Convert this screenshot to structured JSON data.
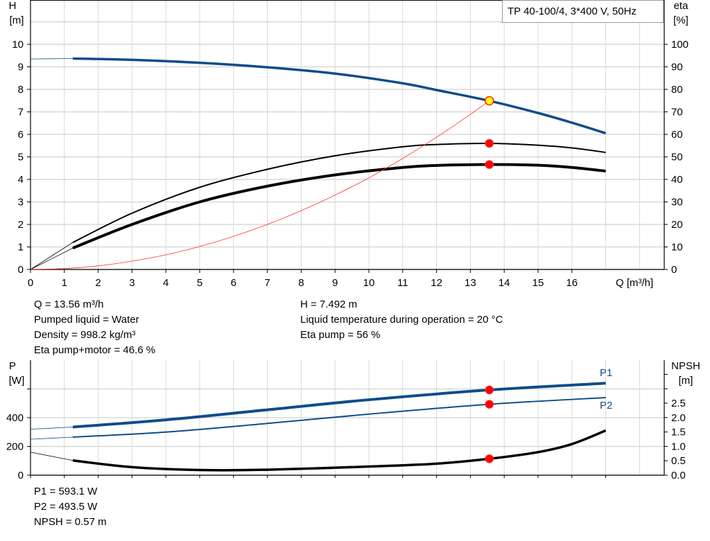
{
  "chart_data": [
    {
      "type": "line",
      "legend_box": "TP 40-100/4, 3*400 V, 50Hz",
      "xlabel": "Q [m³/h]",
      "ylabel_left": [
        "H",
        "[m]"
      ],
      "ylabel_right": [
        "eta",
        "[%]"
      ],
      "xlim": [
        0,
        18.7
      ],
      "ylim_left": [
        0,
        11.9
      ],
      "ylim_right": [
        0,
        119
      ],
      "x_ticks": [
        0,
        1,
        2,
        3,
        4,
        5,
        6,
        7,
        8,
        9,
        10,
        11,
        12,
        13,
        14,
        15,
        16
      ],
      "y_ticks_left": [
        0,
        1,
        2,
        3,
        4,
        5,
        6,
        7,
        8,
        9,
        10
      ],
      "y_ticks_right": [
        0,
        10,
        20,
        30,
        40,
        50,
        60,
        70,
        80,
        90,
        100
      ],
      "grid": true,
      "series": [
        {
          "id": "H",
          "axis": "left",
          "color": "#0f4c8a",
          "x": [
            1.25,
            3,
            5,
            7,
            9,
            11,
            12,
            13.56,
            15,
            16,
            17
          ],
          "y": [
            9.37,
            9.31,
            9.18,
            8.98,
            8.7,
            8.27,
            7.97,
            7.49,
            6.95,
            6.52,
            6.05
          ],
          "extension": {
            "x": [
              0,
              1.25
            ],
            "y": [
              9.35,
              9.37
            ]
          }
        },
        {
          "id": "eta-pump",
          "axis": "right",
          "color": "#000000",
          "x": [
            1.25,
            3,
            5,
            7,
            9,
            11,
            12,
            13.56,
            15,
            16,
            17
          ],
          "y": [
            12,
            25,
            36.5,
            44.5,
            50.5,
            54.5,
            55.5,
            56,
            55.2,
            54,
            52
          ],
          "extension": {
            "x": [
              0,
              1.25
            ],
            "y": [
              0,
              12
            ]
          }
        },
        {
          "id": "eta-pump-motor",
          "axis": "right",
          "color": "#000000",
          "x": [
            1.25,
            3,
            5,
            7,
            9,
            11,
            12,
            13.56,
            15,
            16,
            17
          ],
          "y": [
            9.5,
            20,
            30,
            37,
            42,
            45.3,
            46.2,
            46.6,
            46.3,
            45.3,
            43.7
          ],
          "extension": {
            "x": [
              0,
              1.25
            ],
            "y": [
              0,
              9.5
            ]
          }
        },
        {
          "id": "system-curve",
          "axis": "left",
          "color": "#ff3030",
          "x": [
            0,
            1,
            2,
            3,
            4,
            5,
            6,
            7,
            8,
            9,
            10,
            11,
            12,
            13,
            13.56
          ],
          "y": [
            0,
            0.04,
            0.16,
            0.37,
            0.65,
            1.02,
            1.47,
            2.0,
            2.61,
            3.3,
            4.07,
            4.93,
            5.87,
            6.89,
            7.49
          ]
        }
      ],
      "operating_points": [
        {
          "series": "H",
          "x": 13.56,
          "y": 7.492,
          "color": "#ffff00"
        },
        {
          "series": "eta-pump",
          "x": 13.56,
          "y": 56,
          "color": "#ff0000"
        },
        {
          "series": "eta-pump-motor",
          "x": 13.56,
          "y": 46.6,
          "color": "#ff0000"
        }
      ]
    },
    {
      "type": "line",
      "ylabel_left": [
        "P",
        "[W]"
      ],
      "ylabel_right": [
        "NPSH",
        "[m]"
      ],
      "xlim": [
        0,
        18.7
      ],
      "ylim_left": [
        0,
        800
      ],
      "ylim_right": [
        0,
        4
      ],
      "x_ticks": [
        0,
        1,
        2,
        3,
        4,
        5,
        6,
        7,
        8,
        9,
        10,
        11,
        12,
        13,
        14,
        15,
        16,
        17
      ],
      "y_ticks_left": [
        0,
        200,
        400,
        600
      ],
      "y_tick_labels_left": [
        "0",
        "200",
        "400",
        ""
      ],
      "y_ticks_right": [
        0,
        0.5,
        1.0,
        1.5,
        2.0,
        2.5,
        3.0,
        3.5
      ],
      "y_tick_labels_right": [
        "0.0",
        "0.5",
        "1.0",
        "1.5",
        "2.0",
        "2.5",
        "",
        ""
      ],
      "grid": true,
      "series": [
        {
          "id": "P1",
          "name": "P1",
          "axis": "left",
          "color": "#0f4c8a",
          "x": [
            1.25,
            4,
            7,
            10,
            13.56,
            17
          ],
          "y": [
            335,
            385,
            455,
            525,
            593.1,
            640
          ],
          "extension": {
            "x": [
              0,
              1.25
            ],
            "y": [
              320,
              335
            ]
          }
        },
        {
          "id": "P2",
          "name": "P2",
          "axis": "left",
          "color": "#0f4c8a",
          "x": [
            1.25,
            4,
            7,
            10,
            13.56,
            17
          ],
          "y": [
            265,
            300,
            360,
            425,
            493.5,
            540
          ],
          "extension": {
            "x": [
              0,
              1.25
            ],
            "y": [
              250,
              265
            ]
          }
        },
        {
          "id": "NPSH",
          "axis": "right",
          "color": "#000000",
          "x": [
            1.25,
            3,
            5,
            7,
            10,
            12,
            13.56,
            15,
            16,
            17
          ],
          "y": [
            0.51,
            0.28,
            0.18,
            0.19,
            0.3,
            0.4,
            0.57,
            0.8,
            1.08,
            1.55
          ],
          "extension": {
            "x": [
              0,
              1.25
            ],
            "y": [
              0.8,
              0.51
            ]
          }
        }
      ],
      "operating_points": [
        {
          "series": "P1",
          "x": 13.56,
          "y": 593.1,
          "color": "#ff0000"
        },
        {
          "series": "P2",
          "x": 13.56,
          "y": 493.5,
          "color": "#ff0000"
        },
        {
          "series": "NPSH",
          "x": 13.56,
          "y": 0.57,
          "color": "#ff0000"
        }
      ]
    }
  ],
  "results_top_left": [
    "Q = 13.56 m³/h",
    "Pumped liquid = Water",
    "Density = 998.2 kg/m³",
    "Eta pump+motor = 46.6 %"
  ],
  "results_top_right": [
    "H = 7.492 m",
    "Liquid temperature during operation = 20 °C",
    "Eta pump = 56 %"
  ],
  "results_bottom": [
    "P1 = 593.1 W",
    "P2 = 493.5 W",
    "NPSH = 0.57 m"
  ]
}
